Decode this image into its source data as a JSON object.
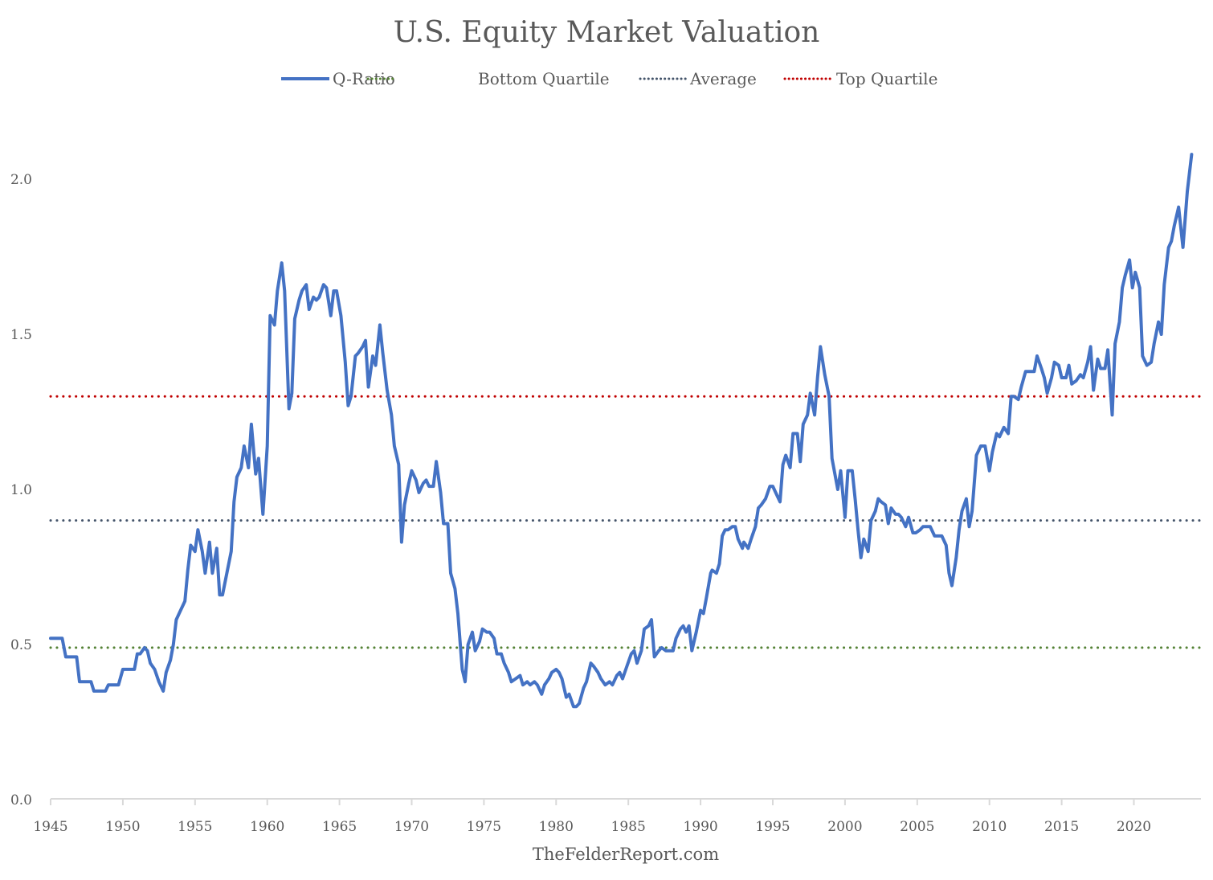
{
  "chart_data": {
    "type": "line",
    "title": "U.S. Equity Market Valuation",
    "xlabel": "",
    "ylabel": "",
    "source": "TheFelderReport.com",
    "xlim": [
      1945,
      2024.2
    ],
    "ylim": [
      0,
      2.0
    ],
    "grid": false,
    "legend_position": "top",
    "x_ticks": [
      1945,
      1950,
      1955,
      1960,
      1965,
      1970,
      1975,
      1980,
      1985,
      1990,
      1995,
      2000,
      2005,
      2010,
      2015,
      2020
    ],
    "x_tick_labels": [
      "1945",
      "1950",
      "1955",
      "1960",
      "1965",
      "1970",
      "1975",
      "1980",
      "1985",
      "1990",
      "1995",
      "2000",
      "2005",
      "2010",
      "2015",
      "2020"
    ],
    "y_ticks": [
      0,
      0.5,
      1.0,
      1.5,
      2.0
    ],
    "y_tick_labels": [
      "0.0",
      "0.5",
      "1.0",
      "1.5",
      "2.0"
    ],
    "colors": {
      "q_ratio": "#4472c4",
      "bottom_quartile": "#548235",
      "average": "#44546a",
      "top_quartile": "#c00000",
      "axis": "#d9d9d9",
      "text": "#595959"
    },
    "series": [
      {
        "name": "Q-Ratio",
        "style": "solid",
        "x": [
          1945.0,
          1945.8,
          1946.05,
          1946.8,
          1947.0,
          1947.8,
          1948.0,
          1948.8,
          1949.0,
          1949.7,
          1950.0,
          1950.8,
          1951.0,
          1951.2,
          1951.5,
          1951.7,
          1951.9,
          1952.2,
          1952.5,
          1952.8,
          1953.0,
          1953.3,
          1953.5,
          1953.7,
          1954.0,
          1954.3,
          1954.5,
          1954.7,
          1955.0,
          1955.2,
          1955.5,
          1955.7,
          1956.0,
          1956.2,
          1956.5,
          1956.7,
          1956.9,
          1957.2,
          1957.5,
          1957.7,
          1957.9,
          1958.2,
          1958.4,
          1958.7,
          1958.9,
          1959.2,
          1959.4,
          1959.7,
          1960.0,
          1960.2,
          1960.5,
          1960.7,
          1961.0,
          1961.2,
          1961.5,
          1961.7,
          1961.9,
          1962.2,
          1962.4,
          1962.7,
          1962.9,
          1963.2,
          1963.4,
          1963.6,
          1963.9,
          1964.1,
          1964.4,
          1964.6,
          1964.8,
          1965.1,
          1965.4,
          1965.6,
          1965.8,
          1966.1,
          1966.3,
          1966.6,
          1966.8,
          1967.0,
          1967.3,
          1967.5,
          1967.8,
          1968.0,
          1968.3,
          1968.6,
          1968.8,
          1969.1,
          1969.3,
          1969.5,
          1969.8,
          1970.0,
          1970.3,
          1970.5,
          1970.8,
          1971.0,
          1971.2,
          1971.5,
          1971.7,
          1972.0,
          1972.2,
          1972.5,
          1972.7,
          1973.0,
          1973.2,
          1973.5,
          1973.7,
          1973.9,
          1974.2,
          1974.4,
          1974.7,
          1974.9,
          1975.2,
          1975.4,
          1975.7,
          1975.9,
          1976.2,
          1976.4,
          1976.7,
          1976.9,
          1977.2,
          1977.5,
          1977.7,
          1978.0,
          1978.2,
          1978.5,
          1978.7,
          1979.0,
          1979.2,
          1979.5,
          1979.7,
          1980.0,
          1980.2,
          1980.4,
          1980.7,
          1980.9,
          1981.2,
          1981.4,
          1981.6,
          1981.9,
          1982.1,
          1982.4,
          1982.6,
          1982.9,
          1983.1,
          1983.4,
          1983.7,
          1983.9,
          1984.2,
          1984.4,
          1984.6,
          1984.9,
          1985.2,
          1985.4,
          1985.6,
          1985.9,
          1986.1,
          1986.4,
          1986.6,
          1986.8,
          1987.1,
          1987.3,
          1987.6,
          1987.8,
          1988.1,
          1988.3,
          1988.6,
          1988.8,
          1989.0,
          1989.2,
          1989.4,
          1989.7,
          1990.0,
          1990.2,
          1990.4,
          1990.7,
          1990.8,
          1991.1,
          1991.3,
          1991.5,
          1991.7,
          1991.9,
          1992.2,
          1992.4,
          1992.6,
          1992.9,
          1993.0,
          1993.3,
          1993.5,
          1993.8,
          1994.0,
          1994.2,
          1994.5,
          1994.8,
          1995.0,
          1995.2,
          1995.5,
          1995.7,
          1995.9,
          1996.2,
          1996.4,
          1996.7,
          1996.9,
          1997.1,
          1997.4,
          1997.6,
          1997.9,
          1998.1,
          1998.3,
          1998.6,
          1998.9,
          1999.1,
          1999.5,
          1999.7,
          2000.0,
          2000.2,
          2000.5,
          2000.7,
          2000.9,
          2001.1,
          2001.3,
          2001.6,
          2001.8,
          2002.1,
          2002.3,
          2002.5,
          2002.8,
          2003.0,
          2003.2,
          2003.5,
          2003.7,
          2003.9,
          2004.2,
          2004.4,
          2004.7,
          2004.9,
          2005.2,
          2005.4,
          2005.7,
          2005.9,
          2006.2,
          2006.4,
          2006.7,
          2007.0,
          2007.2,
          2007.4,
          2007.7,
          2007.9,
          2008.1,
          2008.4,
          2008.6,
          2008.8,
          2009.1,
          2009.4,
          2009.7,
          2010.0,
          2010.2,
          2010.5,
          2010.7,
          2011.0,
          2011.3,
          2011.5,
          2011.7,
          2012.0,
          2012.2,
          2012.5,
          2012.8,
          2013.1,
          2013.3,
          2013.6,
          2013.8,
          2014.0,
          2014.3,
          2014.5,
          2014.8,
          2015.0,
          2015.3,
          2015.5,
          2015.7,
          2016.0,
          2016.3,
          2016.5,
          2016.8,
          2017.0,
          2017.2,
          2017.5,
          2017.7,
          2018.0,
          2018.2,
          2018.5,
          2018.7,
          2019.0,
          2019.2,
          2019.4,
          2019.7,
          2019.9,
          2020.1,
          2020.4,
          2020.6,
          2020.9,
          2021.2,
          2021.4,
          2021.7,
          2021.9,
          2022.1,
          2022.4,
          2022.6,
          2022.8,
          2023.1,
          2023.4,
          2023.7,
          2024.0
        ],
        "y": [
          0.52,
          0.52,
          0.46,
          0.46,
          0.38,
          0.38,
          0.35,
          0.35,
          0.37,
          0.37,
          0.42,
          0.42,
          0.47,
          0.47,
          0.49,
          0.48,
          0.44,
          0.42,
          0.38,
          0.35,
          0.41,
          0.45,
          0.5,
          0.58,
          0.61,
          0.64,
          0.74,
          0.82,
          0.8,
          0.87,
          0.8,
          0.73,
          0.83,
          0.73,
          0.81,
          0.66,
          0.66,
          0.73,
          0.8,
          0.96,
          1.04,
          1.07,
          1.14,
          1.07,
          1.21,
          1.05,
          1.1,
          0.92,
          1.14,
          1.56,
          1.53,
          1.64,
          1.73,
          1.64,
          1.26,
          1.31,
          1.55,
          1.61,
          1.64,
          1.66,
          1.58,
          1.62,
          1.61,
          1.62,
          1.66,
          1.65,
          1.56,
          1.64,
          1.64,
          1.56,
          1.41,
          1.27,
          1.3,
          1.43,
          1.44,
          1.46,
          1.48,
          1.33,
          1.43,
          1.4,
          1.53,
          1.44,
          1.32,
          1.24,
          1.14,
          1.08,
          0.83,
          0.95,
          1.02,
          1.06,
          1.03,
          0.99,
          1.02,
          1.03,
          1.01,
          1.01,
          1.09,
          0.99,
          0.89,
          0.89,
          0.73,
          0.68,
          0.6,
          0.42,
          0.38,
          0.5,
          0.54,
          0.48,
          0.51,
          0.55,
          0.54,
          0.54,
          0.52,
          0.47,
          0.47,
          0.44,
          0.41,
          0.38,
          0.39,
          0.4,
          0.37,
          0.38,
          0.37,
          0.38,
          0.37,
          0.34,
          0.37,
          0.39,
          0.41,
          0.42,
          0.41,
          0.39,
          0.33,
          0.34,
          0.3,
          0.3,
          0.31,
          0.36,
          0.38,
          0.44,
          0.43,
          0.41,
          0.39,
          0.37,
          0.38,
          0.37,
          0.4,
          0.41,
          0.39,
          0.43,
          0.47,
          0.48,
          0.44,
          0.48,
          0.55,
          0.56,
          0.58,
          0.46,
          0.48,
          0.49,
          0.48,
          0.48,
          0.48,
          0.52,
          0.55,
          0.56,
          0.54,
          0.56,
          0.48,
          0.54,
          0.61,
          0.6,
          0.65,
          0.73,
          0.74,
          0.73,
          0.76,
          0.85,
          0.87,
          0.87,
          0.88,
          0.88,
          0.84,
          0.81,
          0.83,
          0.81,
          0.84,
          0.88,
          0.94,
          0.95,
          0.97,
          1.01,
          1.01,
          0.99,
          0.96,
          1.08,
          1.11,
          1.07,
          1.18,
          1.18,
          1.09,
          1.21,
          1.24,
          1.31,
          1.24,
          1.36,
          1.46,
          1.37,
          1.3,
          1.1,
          1.0,
          1.06,
          0.91,
          1.06,
          1.06,
          0.97,
          0.87,
          0.78,
          0.84,
          0.8,
          0.9,
          0.93,
          0.97,
          0.96,
          0.95,
          0.89,
          0.94,
          0.92,
          0.92,
          0.91,
          0.88,
          0.91,
          0.86,
          0.86,
          0.87,
          0.88,
          0.88,
          0.88,
          0.85,
          0.85,
          0.85,
          0.82,
          0.73,
          0.69,
          0.78,
          0.87,
          0.93,
          0.97,
          0.88,
          0.93,
          1.11,
          1.14,
          1.14,
          1.06,
          1.12,
          1.18,
          1.17,
          1.2,
          1.18,
          1.3,
          1.3,
          1.29,
          1.33,
          1.38,
          1.38,
          1.38,
          1.43,
          1.39,
          1.36,
          1.31,
          1.36,
          1.41,
          1.4,
          1.36,
          1.36,
          1.4,
          1.34,
          1.35,
          1.37,
          1.36,
          1.41,
          1.46,
          1.32,
          1.42,
          1.39,
          1.39,
          1.45,
          1.24,
          1.47,
          1.54,
          1.65,
          1.69,
          1.74,
          1.65,
          1.7,
          1.65,
          1.43,
          1.4,
          1.41,
          1.47,
          1.54,
          1.5,
          1.66,
          1.78,
          1.8,
          1.85,
          1.91,
          1.78,
          1.96,
          2.08
        ]
      },
      {
        "name": "Bottom Quartile",
        "style": "dotted",
        "value": 0.49
      },
      {
        "name": "Average",
        "style": "dotted",
        "value": 0.9
      },
      {
        "name": "Top Quartile",
        "style": "dotted",
        "value": 1.3
      }
    ]
  }
}
